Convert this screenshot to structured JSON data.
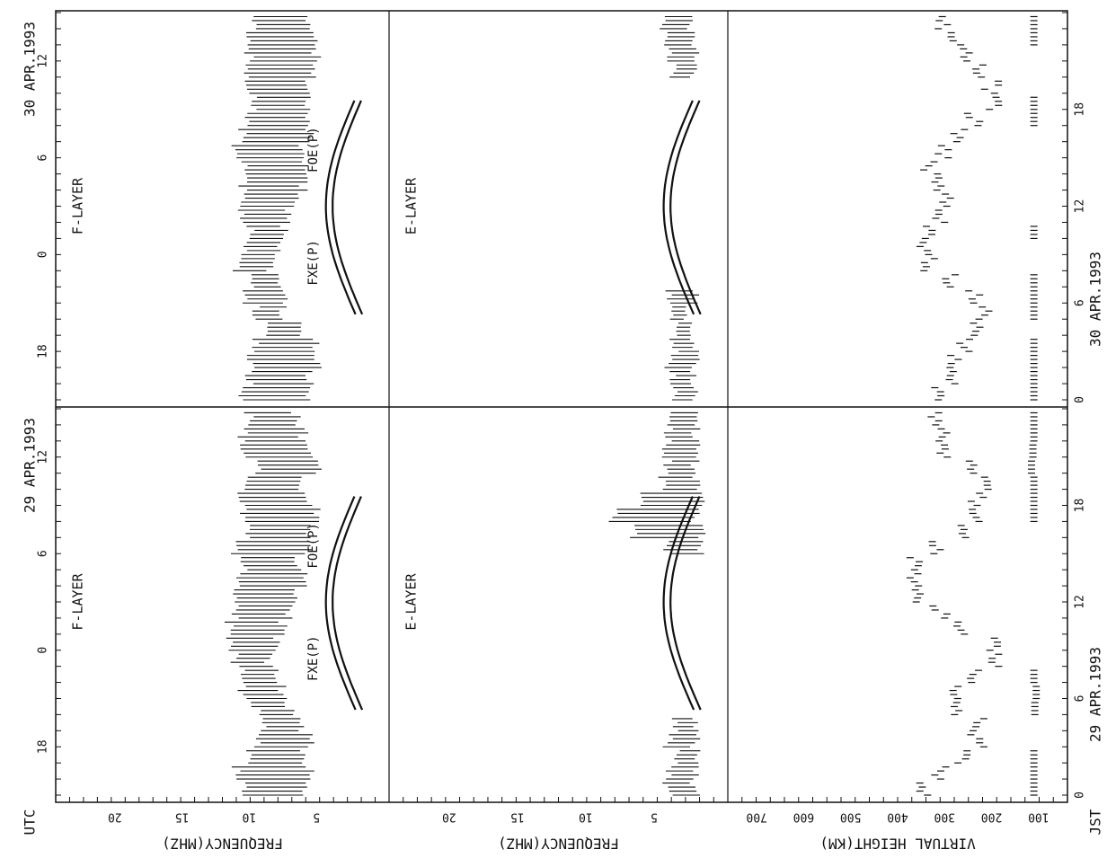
{
  "chart_data": {
    "type": "scatter",
    "edge_labels": {
      "utc": "UTC",
      "jst": "JST"
    },
    "days": [
      {
        "date": "29 APR.1993",
        "utc_ticks": [
          "18",
          "0",
          "6",
          "12"
        ],
        "jst_ticks": [
          "0",
          "6",
          "12",
          "18"
        ]
      },
      {
        "date": "30 APR.1993",
        "utc_ticks": [
          "18",
          "0",
          "6",
          "12"
        ],
        "jst_ticks": [
          "0",
          "6",
          "12",
          "18"
        ]
      }
    ],
    "panels": [
      {
        "id": "f",
        "ylabel": "FREQUENCY(MHZ)",
        "region_label": "F-LAYER",
        "yticks": [
          "5",
          "10",
          "15",
          "20"
        ],
        "ylim": [
          0,
          24
        ],
        "curve_labels": [
          "FXE(P)",
          "FOE(P)"
        ],
        "series": [
          {
            "kind": "observed",
            "day29": [
              [
                0,
                6.0,
                10.5
              ],
              [
                1,
                5.5,
                11.0
              ],
              [
                2,
                6.0,
                10.0
              ],
              [
                3,
                5.5,
                9.5
              ],
              [
                4,
                6.2,
                9.0
              ],
              [
                5,
                7.0,
                9.5
              ],
              [
                6,
                7.5,
                10.5
              ],
              [
                7,
                8.0,
                10.5
              ],
              [
                8,
                8.5,
                11.0
              ],
              [
                9,
                8.0,
                11.5
              ],
              [
                10,
                7.5,
                11.5
              ],
              [
                11,
                7.0,
                11.0
              ],
              [
                12,
                6.5,
                11.0
              ],
              [
                13,
                6.0,
                11.0
              ],
              [
                14,
                6.5,
                10.5
              ],
              [
                15,
                5.5,
                11.0
              ],
              [
                16,
                5.5,
                10.0
              ],
              [
                17,
                5.0,
                10.5
              ],
              [
                18,
                5.5,
                10.5
              ],
              [
                19,
                6.0,
                10.0
              ],
              [
                20,
                5.0,
                9.5
              ],
              [
                21,
                5.5,
                10.5
              ],
              [
                22,
                6.0,
                10.5
              ],
              [
                23,
                6.5,
                10.0
              ]
            ],
            "day30": [
              [
                0,
                5.5,
                10.5
              ],
              [
                1,
                5.5,
                10.0
              ],
              [
                2,
                5.0,
                10.0
              ],
              [
                3,
                5.0,
                9.5
              ],
              [
                4,
                6.5,
                9.0
              ],
              [
                5,
                7.5,
                9.5
              ],
              [
                6,
                7.5,
                10.5
              ],
              [
                7,
                8.0,
                10.0
              ],
              [
                8,
                8.5,
                11.0
              ],
              [
                9,
                8.0,
                10.5
              ],
              [
                10,
                7.5,
                10.0
              ],
              [
                11,
                7.0,
                10.5
              ],
              [
                12,
                6.5,
                10.5
              ],
              [
                13,
                6.0,
                10.5
              ],
              [
                14,
                6.0,
                10.5
              ],
              [
                15,
                6.0,
                11.0
              ],
              [
                16,
                5.5,
                10.5
              ],
              [
                17,
                5.5,
                10.0
              ],
              [
                18,
                5.5,
                9.5
              ],
              [
                19,
                5.5,
                10.0
              ],
              [
                20,
                5.0,
                10.0
              ],
              [
                21,
                5.0,
                10.0
              ],
              [
                22,
                5.0,
                10.0
              ],
              [
                23,
                5.5,
                9.5
              ]
            ]
          }
        ]
      },
      {
        "id": "e",
        "ylabel": "FREQUENCY(MHZ)",
        "region_label": "E-LAYER",
        "yticks": [
          "5",
          "10",
          "15",
          "20"
        ],
        "ylim": [
          0,
          24
        ],
        "series": [
          {
            "kind": "observed",
            "day29": [
              [
                0,
                2.0,
                4.0
              ],
              [
                1,
                2.0,
                4.0
              ],
              [
                2,
                2.0,
                3.5
              ],
              [
                3,
                2.0,
                4.0
              ],
              [
                4,
                2.0,
                3.5
              ],
              [
                15,
                1.5,
                4.0
              ],
              [
                16,
                1.5,
                6.5
              ],
              [
                17,
                2.0,
                8.0
              ],
              [
                18,
                1.5,
                6.0
              ],
              [
                19,
                2.0,
                4.5
              ],
              [
                20,
                2.0,
                4.0
              ],
              [
                21,
                2.0,
                4.5
              ],
              [
                22,
                2.0,
                4.0
              ],
              [
                23,
                2.0,
                4.0
              ]
            ],
            "day30": [
              [
                0,
                2.0,
                3.5
              ],
              [
                1,
                2.0,
                3.5
              ],
              [
                2,
                2.0,
                4.0
              ],
              [
                3,
                2.0,
                3.5
              ],
              [
                4,
                2.5,
                3.5
              ],
              [
                5,
                2.5,
                3.5
              ],
              [
                6,
                2.0,
                4.0
              ],
              [
                20,
                2.0,
                3.5
              ],
              [
                21,
                2.0,
                4.0
              ],
              [
                22,
                2.0,
                4.0
              ],
              [
                23,
                2.5,
                4.5
              ]
            ]
          }
        ]
      },
      {
        "id": "h",
        "ylabel": "VIRTUAL HEIGHT(KM)",
        "yticks": [
          "100",
          "200",
          "300",
          "400",
          "500",
          "600",
          "700"
        ],
        "ylim": [
          50,
          750
        ],
        "series": [
          {
            "kind": "virtual_height",
            "day29": [
              [
                0,
                340
              ],
              [
                1,
                310
              ],
              [
                2,
                260
              ],
              [
                3,
                230
              ],
              [
                4,
                230
              ],
              [
                5,
                280
              ],
              [
                6,
                280
              ],
              [
                7,
                240
              ],
              [
                8,
                200
              ],
              [
                9,
                200
              ],
              [
                10,
                260
              ],
              [
                11,
                310
              ],
              [
                12,
                350
              ],
              [
                13,
                370
              ],
              [
                14,
                360
              ],
              [
                15,
                320
              ],
              [
                16,
                270
              ],
              [
                17,
                240
              ],
              [
                18,
                230
              ],
              [
                19,
                220
              ],
              [
                20,
                250
              ],
              [
                21,
                300
              ],
              [
                22,
                300
              ],
              [
                23,
                320
              ]
            ],
            "day30": [
              [
                0,
                310
              ],
              [
                1,
                290
              ],
              [
                2,
                280
              ],
              [
                3,
                260
              ],
              [
                4,
                240
              ],
              [
                5,
                220
              ],
              [
                6,
                240
              ],
              [
                7,
                290
              ],
              [
                8,
                330
              ],
              [
                9,
                340
              ],
              [
                10,
                330
              ],
              [
                11,
                310
              ],
              [
                12,
                300
              ],
              [
                13,
                320
              ],
              [
                14,
                330
              ],
              [
                15,
                300
              ],
              [
                16,
                270
              ],
              [
                17,
                240
              ],
              [
                18,
                200
              ],
              [
                19,
                200
              ],
              [
                20,
                230
              ],
              [
                21,
                260
              ],
              [
                22,
                280
              ],
              [
                23,
                300
              ]
            ]
          },
          {
            "kind": "es_height",
            "day29": [
              [
                0,
                110
              ],
              [
                1,
                110
              ],
              [
                2,
                110
              ],
              [
                5,
                108
              ],
              [
                6,
                105
              ],
              [
                7,
                110
              ],
              [
                17,
                110
              ],
              [
                18,
                110
              ],
              [
                19,
                110
              ],
              [
                20,
                115
              ],
              [
                21,
                112
              ],
              [
                22,
                110
              ],
              [
                23,
                110
              ]
            ],
            "day30": [
              [
                0,
                110
              ],
              [
                1,
                110
              ],
              [
                2,
                110
              ],
              [
                3,
                110
              ],
              [
                5,
                110
              ],
              [
                6,
                110
              ],
              [
                7,
                110
              ],
              [
                10,
                110
              ],
              [
                17,
                110
              ],
              [
                18,
                110
              ],
              [
                22,
                110
              ],
              [
                23,
                110
              ]
            ]
          }
        ]
      }
    ]
  }
}
